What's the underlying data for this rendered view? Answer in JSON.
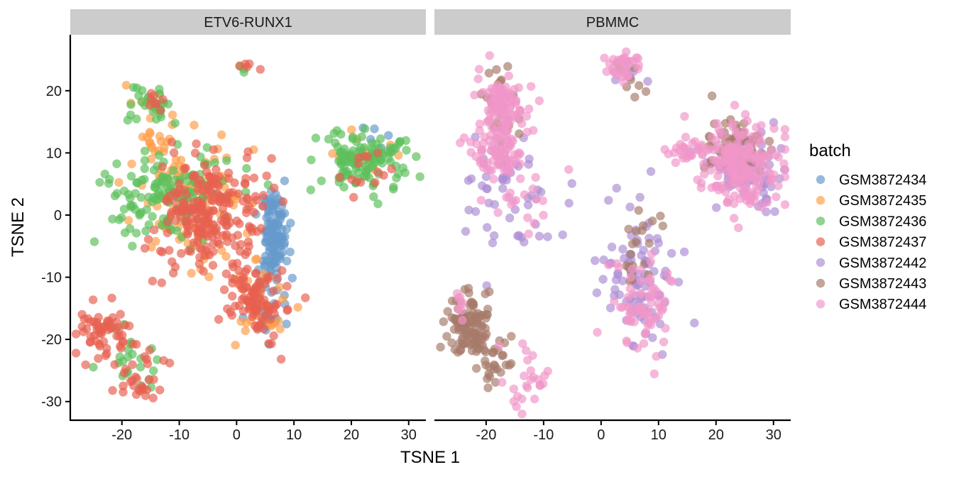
{
  "chart_data": {
    "type": "scatter",
    "xlabel": "TSNE 1",
    "ylabel": "TSNE 2",
    "xlim": [
      -29,
      33
    ],
    "ylim": [
      -33,
      29
    ],
    "x_ticks": [
      -20,
      -10,
      0,
      10,
      20,
      30
    ],
    "y_ticks": [
      -30,
      -20,
      -10,
      0,
      10,
      20
    ],
    "x_tick_labels": [
      "-20",
      "-10",
      "0",
      "10",
      "20",
      "30"
    ],
    "y_tick_labels": [
      "-30",
      "-20",
      "-10",
      "0",
      "10",
      "20"
    ],
    "grid": false,
    "legend": {
      "title": "batch",
      "placement": "right"
    },
    "facets": [
      "ETV6-RUNX1",
      "PBMMC"
    ],
    "series": [
      {
        "name": "GSM3872434",
        "facet": "ETV6-RUNX1",
        "color": "#6699cc",
        "clusters": [
          {
            "cx": 6.5,
            "cy": -3,
            "sx": 1.2,
            "sy": 3.5,
            "n": 110
          },
          {
            "cx": 5,
            "cy": -14,
            "sx": 1.6,
            "sy": 3,
            "n": 40
          },
          {
            "cx": 25,
            "cy": 12,
            "sx": 1.2,
            "sy": 1.5,
            "n": 5
          }
        ]
      },
      {
        "name": "GSM3872435",
        "facet": "ETV6-RUNX1",
        "color": "#ff9e4a",
        "clusters": [
          {
            "cx": -8,
            "cy": 3,
            "sx": 5,
            "sy": 5,
            "n": 110
          },
          {
            "cx": -16,
            "cy": 18,
            "sx": 1.5,
            "sy": 1.5,
            "n": 10
          },
          {
            "cx": -14,
            "cy": 12,
            "sx": 1.2,
            "sy": 1.5,
            "n": 14
          },
          {
            "cx": 3,
            "cy": -15,
            "sx": 3,
            "sy": 3,
            "n": 35
          },
          {
            "cx": 22,
            "cy": 10,
            "sx": 3,
            "sy": 2,
            "n": 12
          }
        ]
      },
      {
        "name": "GSM3872436",
        "facet": "ETV6-RUNX1",
        "color": "#5cbf5c",
        "clusters": [
          {
            "cx": -12,
            "cy": 3,
            "sx": 6,
            "sy": 3.5,
            "n": 140
          },
          {
            "cx": -15,
            "cy": 18,
            "sx": 1.8,
            "sy": 1.6,
            "n": 28
          },
          {
            "cx": 22,
            "cy": 9,
            "sx": 4,
            "sy": 2.5,
            "n": 120
          },
          {
            "cx": -19,
            "cy": -24,
            "sx": 3,
            "sy": 3,
            "n": 22
          },
          {
            "cx": 1,
            "cy": 23.5,
            "sx": 0.6,
            "sy": 0.5,
            "n": 3
          }
        ]
      },
      {
        "name": "GSM3872437",
        "facet": "ETV6-RUNX1",
        "color": "#e8604f",
        "clusters": [
          {
            "cx": -5,
            "cy": 0,
            "sx": 4.5,
            "sy": 4.5,
            "n": 220
          },
          {
            "cx": 3,
            "cy": -13,
            "sx": 2.8,
            "sy": 3.5,
            "n": 100
          },
          {
            "cx": -23,
            "cy": -19,
            "sx": 2.5,
            "sy": 2,
            "n": 60
          },
          {
            "cx": -17,
            "cy": -26,
            "sx": 2.5,
            "sy": 2,
            "n": 30
          },
          {
            "cx": -14,
            "cy": 17.5,
            "sx": 1,
            "sy": 1,
            "n": 8
          },
          {
            "cx": 24,
            "cy": 7,
            "sx": 3,
            "sy": 2,
            "n": 14
          },
          {
            "cx": 3,
            "cy": 24,
            "sx": 1.5,
            "sy": 0.4,
            "n": 5
          }
        ]
      },
      {
        "name": "GSM3872442",
        "facet": "PBMMC",
        "color": "#ac8ed4",
        "clusters": [
          {
            "cx": 25,
            "cy": 7,
            "sx": 3,
            "sy": 3,
            "n": 90
          },
          {
            "cx": 7,
            "cy": -10,
            "sx": 3.5,
            "sy": 6,
            "n": 90
          },
          {
            "cx": -15,
            "cy": 0,
            "sx": 5,
            "sy": 5,
            "n": 30
          },
          {
            "cx": -18,
            "cy": 8,
            "sx": 3,
            "sy": 2.5,
            "n": 25
          },
          {
            "cx": 5,
            "cy": 23,
            "sx": 1.5,
            "sy": 1,
            "n": 6
          }
        ]
      },
      {
        "name": "GSM3872443",
        "facet": "PBMMC",
        "color": "#a77a6a",
        "clusters": [
          {
            "cx": -23,
            "cy": -18,
            "sx": 1.8,
            "sy": 2.5,
            "n": 110
          },
          {
            "cx": -18,
            "cy": -24,
            "sx": 2.5,
            "sy": 2.5,
            "n": 30
          },
          {
            "cx": 24,
            "cy": 11,
            "sx": 3,
            "sy": 2.5,
            "n": 60
          },
          {
            "cx": -17,
            "cy": 17,
            "sx": 2,
            "sy": 2.5,
            "n": 25
          },
          {
            "cx": 7,
            "cy": -4,
            "sx": 2,
            "sy": 3,
            "n": 20
          },
          {
            "cx": 5,
            "cy": 22,
            "sx": 1.5,
            "sy": 1.5,
            "n": 8
          }
        ]
      },
      {
        "name": "GSM3872444",
        "facet": "PBMMC",
        "color": "#f096c8",
        "clusters": [
          {
            "cx": 24,
            "cy": 8,
            "sx": 3.5,
            "sy": 3.5,
            "n": 200
          },
          {
            "cx": 15,
            "cy": 10,
            "sx": 2,
            "sy": 0.8,
            "n": 25
          },
          {
            "cx": -17,
            "cy": 18,
            "sx": 2,
            "sy": 2.2,
            "n": 90
          },
          {
            "cx": -18,
            "cy": 10,
            "sx": 2.5,
            "sy": 2.5,
            "n": 80
          },
          {
            "cx": 4,
            "cy": 24,
            "sx": 1.5,
            "sy": 1.2,
            "n": 35
          },
          {
            "cx": 8,
            "cy": -15,
            "sx": 2.5,
            "sy": 4,
            "n": 70
          },
          {
            "cx": -13,
            "cy": -26,
            "sx": 2.5,
            "sy": 2.5,
            "n": 25
          },
          {
            "cx": -24,
            "cy": -15,
            "sx": 1,
            "sy": 1,
            "n": 8
          },
          {
            "cx": -14,
            "cy": 0,
            "sx": 4,
            "sy": 5,
            "n": 20
          }
        ]
      }
    ]
  }
}
